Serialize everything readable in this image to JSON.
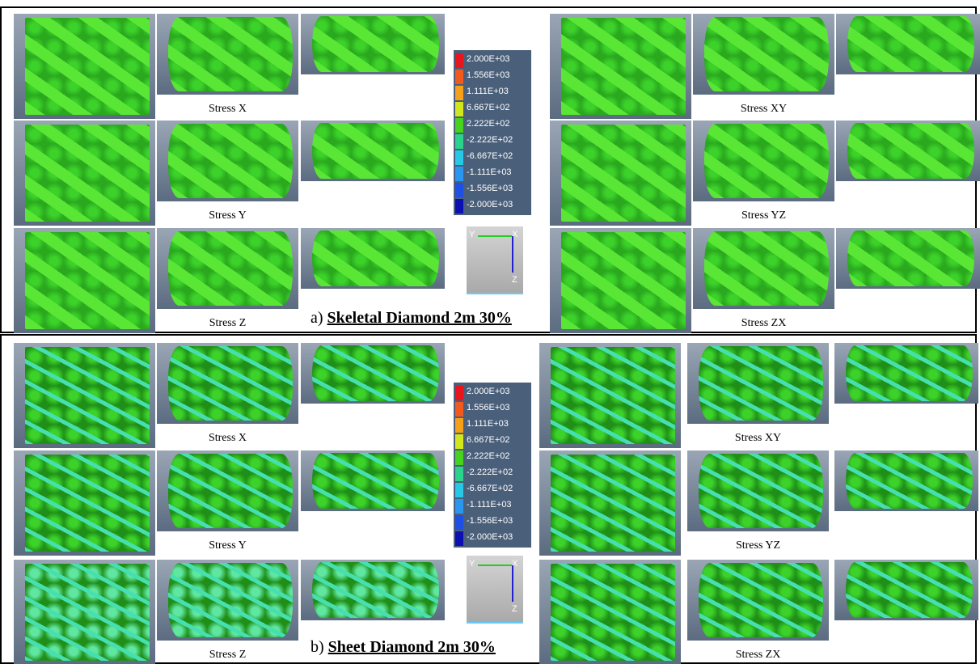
{
  "sections": [
    {
      "caption_prefix": "a)",
      "caption": "Skeletal Diamond 2m 30%",
      "legend": [
        "2.000E+03",
        "1.556E+03",
        "1.111E+03",
        "6.667E+02",
        "2.222E+02",
        "-2.222E+02",
        "-6.667E+02",
        "-1.111E+03",
        "-1.556E+03",
        "-2.000E+03"
      ],
      "axes": [
        "Y",
        "X",
        "Z"
      ],
      "groups": [
        {
          "labels": [
            "Stress X",
            "Stress Y",
            "Stress Z"
          ]
        },
        {
          "labels": [
            "Stress XY",
            "Stress YZ",
            "Stress ZX"
          ]
        }
      ]
    },
    {
      "caption_prefix": "b)",
      "caption": "Sheet Diamond 2m 30%",
      "legend": [
        "2.000E+03",
        "1.556E+03",
        "1.111E+03",
        "6.667E+02",
        "2.222E+02",
        "-2.222E+02",
        "-6.667E+02",
        "-1.111E+03",
        "-1.556E+03",
        "-2.000E+03"
      ],
      "axes": [
        "Y",
        "X",
        "Z"
      ],
      "groups": [
        {
          "labels": [
            "Stress X",
            "Stress Y",
            "Stress Z"
          ]
        },
        {
          "labels": [
            "Stress XY",
            "Stress YZ",
            "Stress ZX"
          ]
        }
      ]
    }
  ]
}
